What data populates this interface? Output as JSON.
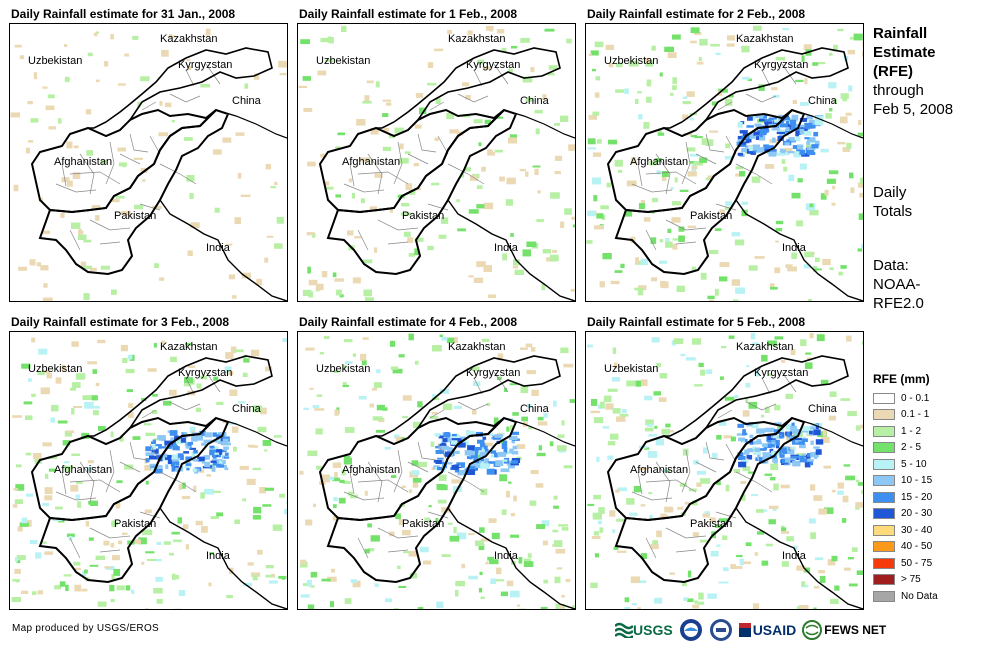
{
  "panels": [
    {
      "title": "Daily Rainfall estimate for 31 Jan., 2008",
      "level": 0
    },
    {
      "title": "Daily Rainfall estimate for 1 Feb., 2008",
      "level": 1
    },
    {
      "title": "Daily Rainfall estimate for 2 Feb., 2008",
      "level": 3
    },
    {
      "title": "Daily Rainfall estimate for 3 Feb., 2008",
      "level": 2
    },
    {
      "title": "Daily Rainfall estimate for 4 Feb., 2008",
      "level": 2
    },
    {
      "title": "Daily Rainfall estimate for 5 Feb., 2008",
      "level": 3
    }
  ],
  "map_labels": {
    "kazakhstan": "Kazakhstan",
    "uzbekistan": "Uzbekistan",
    "kyrgyzstan": "Kyrgyzstan",
    "china": "China",
    "afghanistan": "Afghanistan",
    "pakistan": "Pakistan",
    "india": "India"
  },
  "side": {
    "title_line1": "Rainfall",
    "title_line2": "Estimate",
    "title_line3": "(RFE)",
    "through": "through",
    "date": "Feb 5, 2008",
    "daily1": "Daily",
    "daily2": "Totals",
    "data1": "Data:",
    "data2": "NOAA-",
    "data3": "RFE2.0"
  },
  "legend": {
    "title": "RFE (mm)",
    "items": [
      {
        "label": "0 - 0.1",
        "color": "#ffffff"
      },
      {
        "label": "0.1 - 1",
        "color": "#ebd9b4"
      },
      {
        "label": "1 - 2",
        "color": "#b7f0a4"
      },
      {
        "label": "2 - 5",
        "color": "#74e26a"
      },
      {
        "label": "5 - 10",
        "color": "#b8f2f4"
      },
      {
        "label": "10 - 15",
        "color": "#8cc7f5"
      },
      {
        "label": "15 - 20",
        "color": "#3e8ff0"
      },
      {
        "label": "20 - 30",
        "color": "#1f57d6"
      },
      {
        "label": "30 - 40",
        "color": "#fddb7c"
      },
      {
        "label": "40 - 50",
        "color": "#fb9a1a"
      },
      {
        "label": "50 - 75",
        "color": "#f53a0c"
      },
      {
        "label": "> 75",
        "color": "#a11e1e"
      },
      {
        "label": "No Data",
        "color": "#a6a6a6"
      }
    ]
  },
  "footer": "Map produced by USGS/EROS",
  "logos": {
    "usgs": "USGS",
    "usaid": "USAID",
    "fewsnet": "FEWS NET"
  }
}
